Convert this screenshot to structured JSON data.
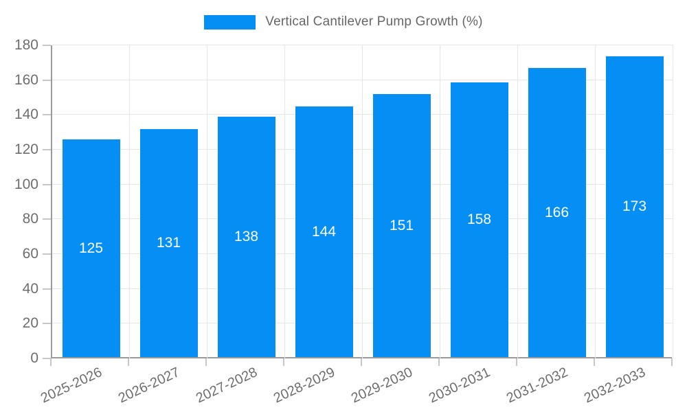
{
  "legend": {
    "label": "Vertical Cantilever Pump Growth (%)"
  },
  "chart_data": {
    "type": "bar",
    "title": "",
    "series_name": "Vertical Cantilever Pump Growth (%)",
    "categories": [
      "2025-2026",
      "2026-2027",
      "2027-2028",
      "2028-2029",
      "2029-2030",
      "2030-2031",
      "2031-2032",
      "2032-2033"
    ],
    "values": [
      125,
      131,
      138,
      144,
      151,
      158,
      166,
      173
    ],
    "xlabel": "",
    "ylabel": "",
    "ylim": [
      0,
      180
    ],
    "ytick_step": 20,
    "ytick_labels": [
      "0",
      "20",
      "40",
      "60",
      "80",
      "100",
      "120",
      "140",
      "160",
      "180"
    ],
    "grid": true,
    "legend_position": "top",
    "colors": {
      "bar": "#058ff5",
      "bar_value_label": "#ffffff",
      "axis_line": "#9a9a9a",
      "gridline": "#e6e6e6",
      "tick_text": "#6e6e6e",
      "legend_text": "#666666"
    }
  }
}
